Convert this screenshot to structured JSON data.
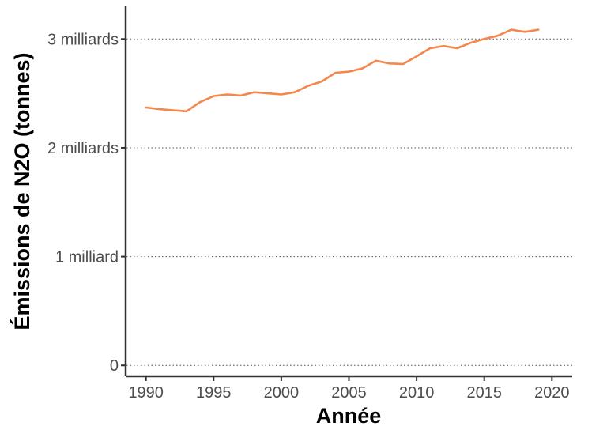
{
  "chart_data": {
    "type": "line",
    "title": "",
    "xlabel": "Année",
    "ylabel": "Émissions de N2O (tonnes)",
    "xlim": [
      1988.5,
      2021.5
    ],
    "ylim": [
      -100000000,
      3300000000
    ],
    "x_ticks": [
      1990,
      1995,
      2000,
      2005,
      2010,
      2015,
      2020
    ],
    "y_ticks": [
      {
        "value": 0,
        "label": "0"
      },
      {
        "value": 1000000000,
        "label": "1 milliard"
      },
      {
        "value": 2000000000,
        "label": "2 milliards"
      },
      {
        "value": 3000000000,
        "label": "3 milliards"
      }
    ],
    "grid": "horizontal-dotted",
    "color": "#F4874B",
    "series": [
      {
        "x": [
          1990,
          1991,
          1992,
          1993,
          1994,
          1995,
          1996,
          1997,
          1998,
          1999,
          2000,
          2001,
          2002,
          2003,
          2004,
          2005,
          2006,
          2007,
          2008,
          2009,
          2010,
          2011,
          2012,
          2013,
          2014,
          2015,
          2016,
          2017,
          2018,
          2019
        ],
        "values": [
          2370000000,
          2355000000,
          2345000000,
          2335000000,
          2420000000,
          2475000000,
          2490000000,
          2480000000,
          2510000000,
          2500000000,
          2490000000,
          2510000000,
          2570000000,
          2610000000,
          2690000000,
          2700000000,
          2730000000,
          2800000000,
          2775000000,
          2770000000,
          2840000000,
          2915000000,
          2935000000,
          2915000000,
          2965000000,
          3000000000,
          3030000000,
          3085000000,
          3065000000,
          3085000000
        ]
      }
    ]
  }
}
